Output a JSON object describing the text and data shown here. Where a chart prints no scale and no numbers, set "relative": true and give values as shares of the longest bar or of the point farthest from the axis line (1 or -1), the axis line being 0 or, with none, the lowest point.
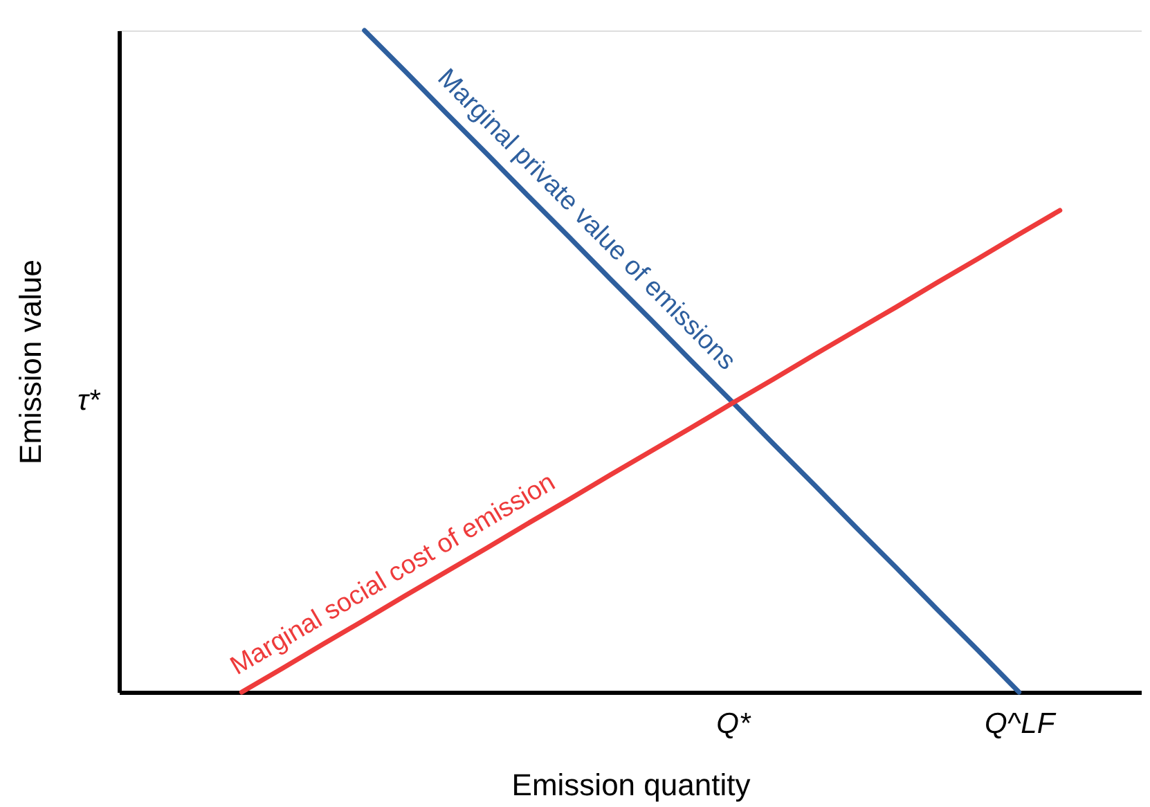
{
  "chart_data": {
    "type": "line",
    "relative": true,
    "xlabel": "Emission quantity",
    "ylabel": "Emission value",
    "categories": [
      null,
      null,
      null,
      null,
      null,
      null,
      null,
      null,
      null,
      null,
      null,
      null,
      null,
      null,
      null,
      "Q*",
      null,
      null,
      null,
      null,
      null,
      null,
      "Q^LF",
      null,
      null,
      null
    ],
    "annotations": [
      "τ*"
    ],
    "series": [
      {
        "name": "Marginal private value of emissions",
        "color": "#2e5f9e",
        "values": [
          null,
          null,
          null,
          null,
          null,
          null,
          1,
          0.938,
          0.875,
          0.813,
          0.75,
          0.688,
          0.625,
          0.563,
          0.5,
          0.438,
          0.375,
          0.313,
          0.25,
          0.188,
          0.125,
          0.063,
          0,
          null,
          null,
          null
        ]
      },
      {
        "name": "Marginal social cost of emission",
        "color": "#ee3b3b",
        "values": [
          null,
          null,
          null,
          0,
          0.036,
          0.073,
          0.109,
          0.146,
          0.182,
          0.218,
          0.255,
          0.291,
          0.328,
          0.364,
          0.4,
          0.437,
          0.473,
          0.51,
          0.546,
          0.582,
          0.619,
          0.655,
          0.692,
          0.728,
          null,
          null
        ]
      }
    ],
    "marker": "none",
    "line_style": "solid"
  }
}
